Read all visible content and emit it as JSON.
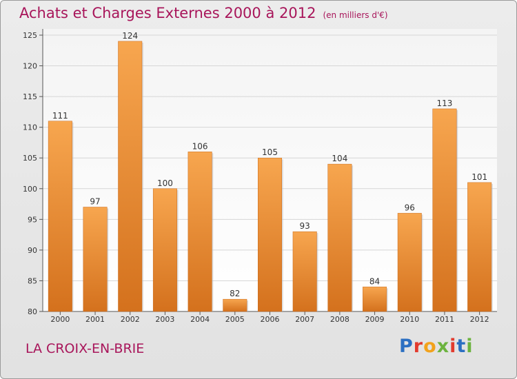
{
  "chart_data": {
    "type": "bar",
    "title": "Achats et Charges Externes 2000 à 2012",
    "subtitle": "(en milliers d'€)",
    "categories": [
      "2000",
      "2001",
      "2002",
      "2003",
      "2004",
      "2005",
      "2006",
      "2007",
      "2008",
      "2009",
      "2010",
      "2011",
      "2012"
    ],
    "values": [
      111,
      97,
      124,
      100,
      106,
      82,
      105,
      93,
      104,
      84,
      96,
      113,
      101
    ],
    "ylim": [
      80,
      125
    ],
    "yticks": [
      80,
      85,
      90,
      95,
      100,
      105,
      110,
      115,
      120,
      125
    ],
    "grid": true,
    "bar_color_top": "#f7a64f",
    "bar_color_bottom": "#d4711d",
    "xlabel": "",
    "ylabel": ""
  },
  "place_name": "LA CROIX-EN-BRIE",
  "logo_text": [
    "P",
    "r",
    "o",
    "x",
    "i",
    "t",
    "i"
  ]
}
